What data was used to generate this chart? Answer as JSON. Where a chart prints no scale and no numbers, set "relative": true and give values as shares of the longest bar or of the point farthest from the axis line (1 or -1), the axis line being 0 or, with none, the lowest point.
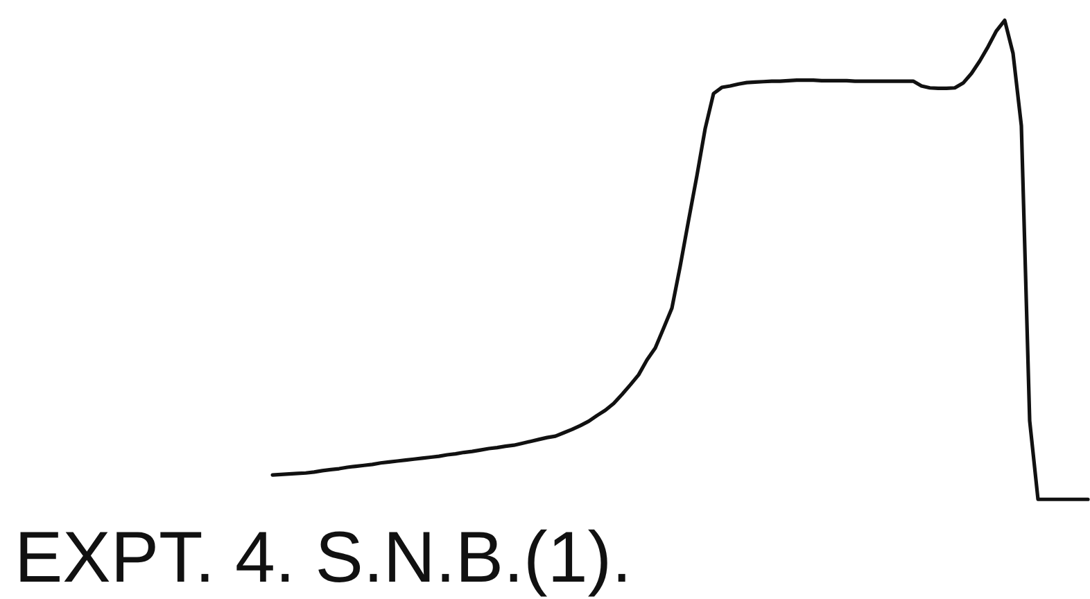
{
  "chart_data": {
    "type": "line",
    "title": "EXPT. 4. S.N.B.(1).",
    "relative": true,
    "categories": [
      null,
      null,
      null,
      null,
      null,
      null,
      null,
      null,
      null,
      null,
      null,
      null,
      null,
      null,
      null,
      null,
      null,
      null,
      null,
      null,
      null,
      null,
      null,
      null,
      null,
      null,
      null,
      null,
      null,
      null,
      null,
      null,
      null,
      null,
      null,
      null,
      null,
      null,
      null,
      null,
      null,
      null,
      null,
      null,
      null,
      null,
      null,
      null,
      null,
      null,
      null,
      null,
      null,
      null,
      null,
      null,
      null,
      null,
      null,
      null,
      null,
      null,
      null,
      null,
      null,
      null,
      null,
      null,
      null,
      null,
      null,
      null,
      null,
      null,
      null,
      null,
      null,
      null,
      null,
      null,
      null,
      null,
      null,
      null,
      null,
      null,
      null,
      null,
      null,
      null,
      null,
      null,
      null,
      null,
      null,
      null,
      null,
      null,
      null
    ],
    "series": [
      {
        "color": "#111111",
        "values": [
          0.051,
          0.052,
          0.053,
          0.054,
          0.055,
          0.057,
          0.06,
          0.062,
          0.064,
          0.067,
          0.069,
          0.071,
          0.073,
          0.076,
          0.078,
          0.08,
          0.082,
          0.084,
          0.086,
          0.088,
          0.09,
          0.093,
          0.095,
          0.098,
          0.1,
          0.103,
          0.106,
          0.108,
          0.111,
          0.113,
          0.117,
          0.121,
          0.125,
          0.129,
          0.132,
          0.139,
          0.146,
          0.154,
          0.163,
          0.175,
          0.186,
          0.2,
          0.219,
          0.239,
          0.26,
          0.291,
          0.316,
          0.357,
          0.399,
          0.487,
          0.582,
          0.675,
          0.774,
          0.847,
          0.86,
          0.863,
          0.867,
          0.87,
          0.871,
          0.872,
          0.873,
          0.873,
          0.874,
          0.875,
          0.875,
          0.875,
          0.874,
          0.874,
          0.874,
          0.874,
          0.873,
          0.873,
          0.873,
          0.873,
          0.873,
          0.873,
          0.873,
          0.873,
          0.863,
          0.859,
          0.858,
          0.858,
          0.859,
          0.869,
          0.889,
          0.915,
          0.945,
          0.978,
          1.0,
          0.931,
          0.78,
          0.164,
          0,
          0,
          0,
          0,
          0,
          0,
          0
        ]
      }
    ]
  }
}
